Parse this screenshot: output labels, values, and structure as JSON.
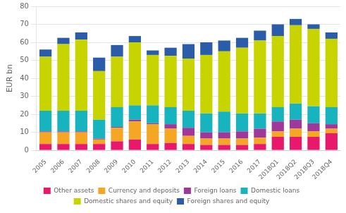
{
  "chart_data": {
    "type": "bar",
    "stacked": true,
    "grid": true,
    "legend": "bottom",
    "ylabel": "EUR bn",
    "categories": [
      "2005",
      "2006",
      "2007",
      "2008",
      "2009",
      "2010",
      "2011",
      "2012",
      "2013",
      "2014",
      "2015",
      "2016",
      "2017",
      "2018Q1",
      "2018Q2",
      "2018Q3",
      "2018Q4"
    ],
    "series": [
      {
        "name": "Other assets",
        "color": "#e8186d",
        "values": [
          3.5,
          3.5,
          3.5,
          3.5,
          5.0,
          6.0,
          3.5,
          4.0,
          3.5,
          3.0,
          3.0,
          3.0,
          3.5,
          7.5,
          7.5,
          7.5,
          9.5
        ]
      },
      {
        "name": "Currency and deposits",
        "color": "#f5a623",
        "values": [
          6.5,
          6.5,
          6.5,
          2.5,
          7.5,
          10.0,
          11.0,
          8.0,
          4.5,
          3.5,
          3.5,
          3.5,
          3.5,
          3.0,
          4.5,
          3.0,
          2.5
        ]
      },
      {
        "name": "Foreign loans",
        "color": "#a0379a",
        "values": [
          0.5,
          0.5,
          0.5,
          0.5,
          0.5,
          1.0,
          0.5,
          2.5,
          4.5,
          3.5,
          3.5,
          4.0,
          5.0,
          5.5,
          5.0,
          4.5,
          2.5
        ]
      },
      {
        "name": "Domestic loans",
        "color": "#17b3bf",
        "values": [
          11.5,
          11.5,
          11.5,
          10.5,
          11.0,
          8.0,
          10.0,
          9.5,
          9.5,
          10.5,
          11.5,
          10.0,
          8.5,
          8.0,
          9.0,
          9.5,
          9.5
        ]
      },
      {
        "name": "Domestic shares and equity",
        "color": "#c8d400",
        "values": [
          30.0,
          37.0,
          39.5,
          27.0,
          28.0,
          35.0,
          28.0,
          28.5,
          29.0,
          32.5,
          33.5,
          36.5,
          40.5,
          39.5,
          43.5,
          43.0,
          38.0
        ]
      },
      {
        "name": "Foreign shares and equity",
        "color": "#2a5caa",
        "values": [
          4.0,
          3.5,
          4.0,
          7.5,
          6.5,
          3.5,
          2.5,
          4.5,
          8.0,
          7.0,
          6.0,
          5.5,
          5.5,
          6.5,
          3.5,
          2.5,
          3.5
        ]
      }
    ],
    "ylim": [
      0,
      80
    ],
    "yticks": [
      0,
      10,
      20,
      30,
      40,
      50,
      60,
      70,
      80
    ]
  }
}
